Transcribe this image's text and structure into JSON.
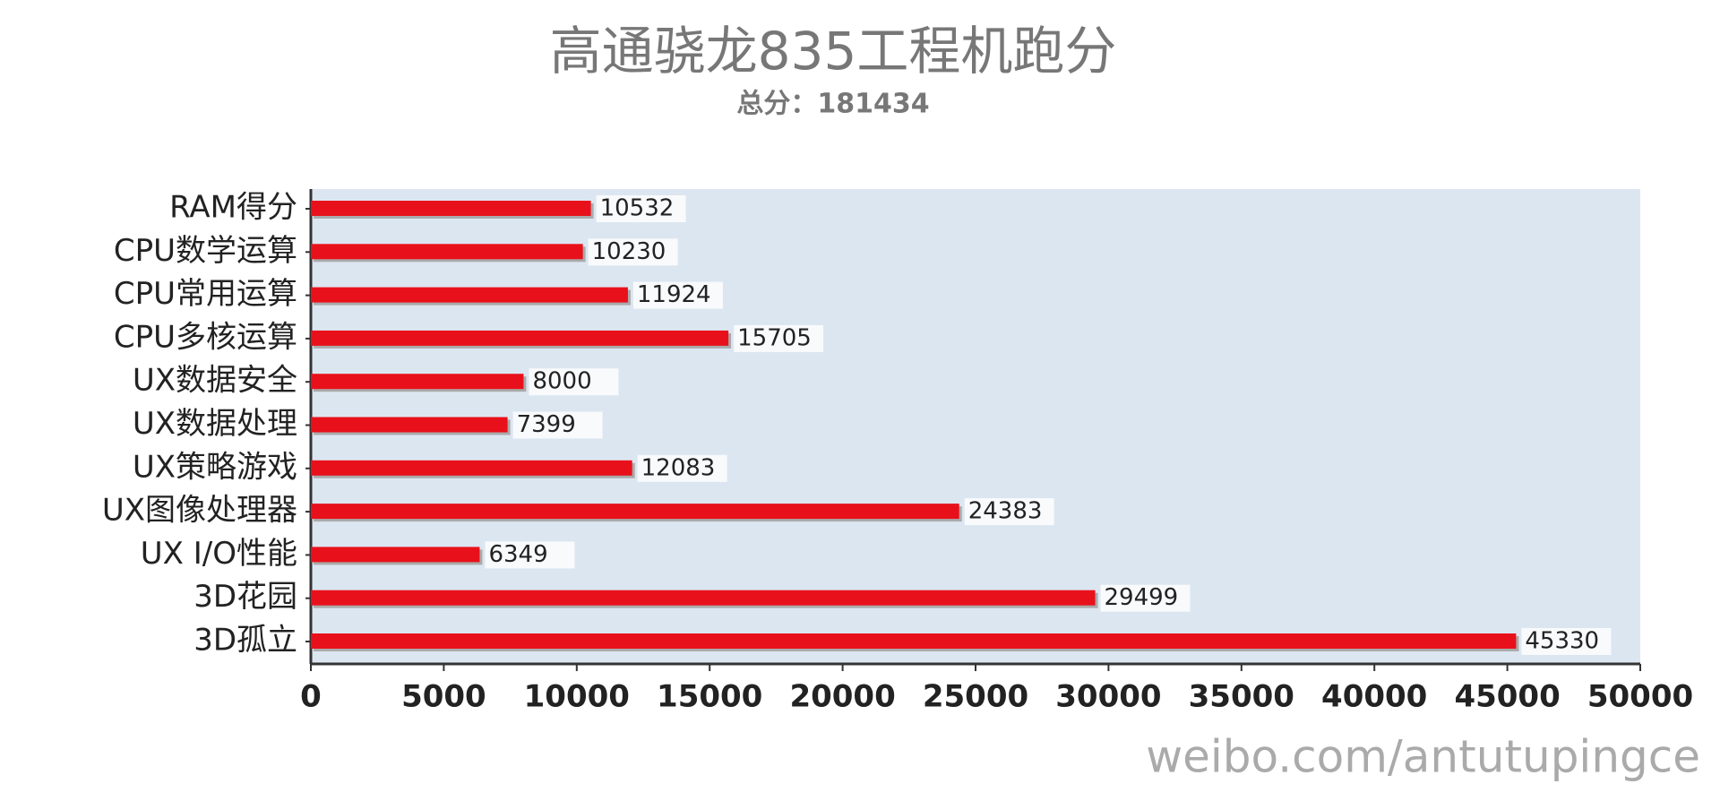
{
  "chart_data": {
    "type": "bar",
    "orientation": "horizontal",
    "title": "高通骁龙835工程机跑分",
    "subtitle": "总分：181434",
    "categories": [
      "RAM得分",
      "CPU数学运算",
      "CPU常用运算",
      "CPU多核运算",
      "UX数据安全",
      "UX数据处理",
      "UX策略游戏",
      "UX图像处理器",
      "UX I/O性能",
      "3D花园",
      "3D孤立"
    ],
    "values": [
      10532,
      10230,
      11924,
      15705,
      8000,
      7399,
      12083,
      24383,
      6349,
      29499,
      45330
    ],
    "color": "#e8111b",
    "xlim": [
      0,
      50000
    ],
    "xticks": [
      0,
      5000,
      10000,
      15000,
      20000,
      25000,
      30000,
      35000,
      40000,
      45000,
      50000
    ],
    "watermark": "weibo.com/antutupingce"
  }
}
